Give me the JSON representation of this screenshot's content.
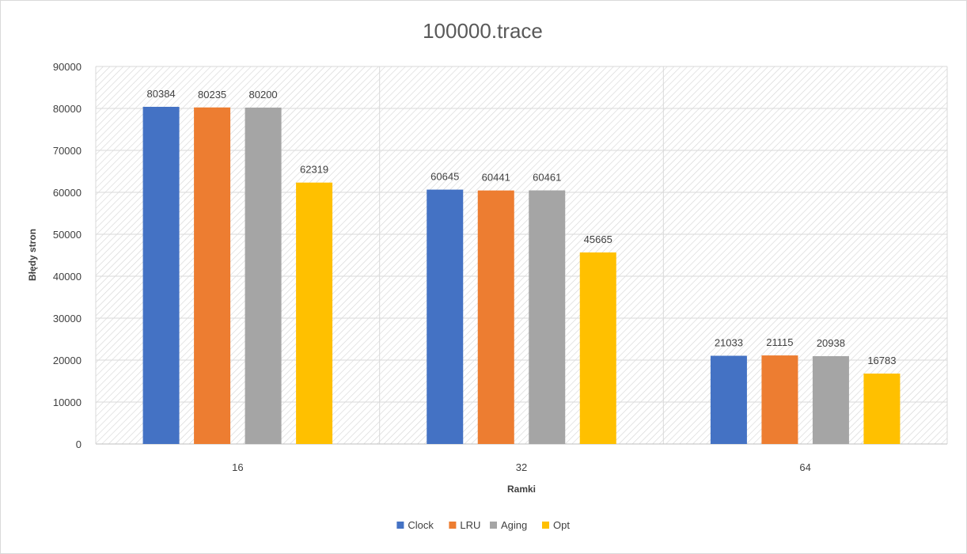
{
  "chart_data": {
    "type": "bar",
    "title": "100000.trace",
    "xlabel": "Ramki",
    "ylabel": "Błędy stron",
    "categories": [
      "16",
      "32",
      "64"
    ],
    "ylim": [
      0,
      90000
    ],
    "yticks": [
      0,
      10000,
      20000,
      30000,
      40000,
      50000,
      60000,
      70000,
      80000,
      90000
    ],
    "grid": true,
    "legend_position": "bottom",
    "series": [
      {
        "name": "Clock",
        "color": "#4472C4",
        "values": [
          80384,
          60645,
          21033
        ]
      },
      {
        "name": "LRU",
        "color": "#ED7D31",
        "values": [
          80235,
          60441,
          21115
        ]
      },
      {
        "name": "Aging",
        "color": "#A5A5A5",
        "values": [
          80200,
          60461,
          20938
        ]
      },
      {
        "name": "Opt",
        "color": "#FFC000",
        "values": [
          62319,
          45665,
          16783
        ]
      }
    ]
  }
}
